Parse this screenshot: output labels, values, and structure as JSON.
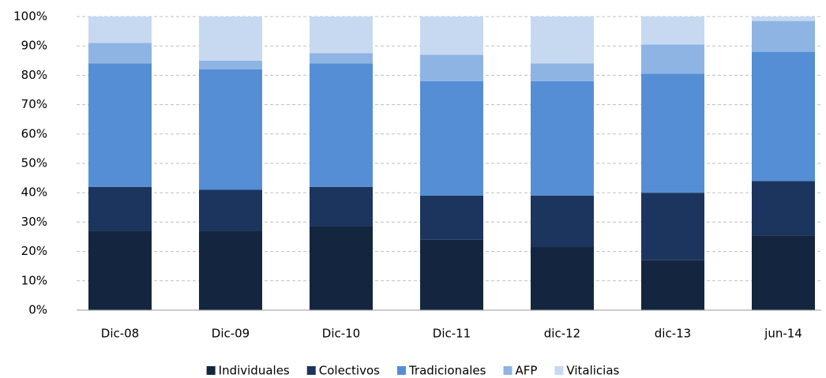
{
  "chart_data": {
    "type": "stacked-bar",
    "categories": [
      "Dic-08",
      "Dic-09",
      "Dic-10",
      "Dic-11",
      "dic-12",
      "dic-13",
      "jun-14"
    ],
    "series": [
      {
        "name": "Individuales",
        "color": "#14263f",
        "values": [
          27,
          27,
          28.5,
          24,
          21.5,
          17,
          25.5
        ]
      },
      {
        "name": "Colectivos",
        "color": "#1c355e",
        "values": [
          15,
          14,
          13.5,
          15,
          17.5,
          23,
          18.5
        ]
      },
      {
        "name": "Tradicionales",
        "color": "#558ed5",
        "values": [
          42,
          41,
          42,
          39,
          39,
          40.5,
          44
        ]
      },
      {
        "name": "AFP",
        "color": "#8eb4e3",
        "values": [
          7,
          3,
          3.5,
          9,
          6,
          10,
          10.5
        ]
      },
      {
        "name": "Vitalicias",
        "color": "#c6d9f1",
        "values": [
          9,
          15,
          12.5,
          13,
          16,
          9.5,
          1.5
        ]
      }
    ],
    "ylim": [
      0,
      100
    ],
    "yticks": [
      {
        "value": 0,
        "label": "0%"
      },
      {
        "value": 10,
        "label": "10%"
      },
      {
        "value": 20,
        "label": "20%"
      },
      {
        "value": 30,
        "label": "30%"
      },
      {
        "value": 40,
        "label": "40%"
      },
      {
        "value": 50,
        "label": "50%"
      },
      {
        "value": 60,
        "label": "60%"
      },
      {
        "value": 70,
        "label": "70%"
      },
      {
        "value": 80,
        "label": "80%"
      },
      {
        "value": 90,
        "label": "90%"
      },
      {
        "value": 100,
        "label": "100%"
      }
    ],
    "grid": true,
    "legend": "bottom"
  }
}
